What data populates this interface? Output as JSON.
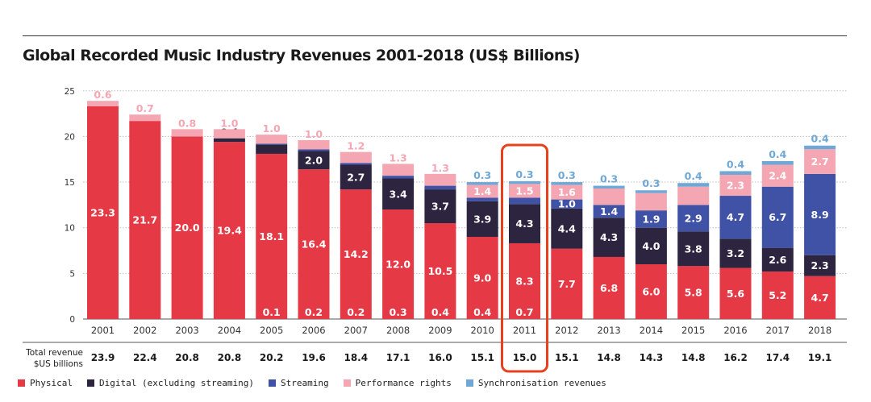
{
  "chart_data": {
    "type": "bar",
    "stacked": true,
    "title": "Global Recorded Music Industry Revenues 2001-2018 (US$ Billions)",
    "categories": [
      "2001",
      "2002",
      "2003",
      "2004",
      "2005",
      "2006",
      "2007",
      "2008",
      "2009",
      "2010",
      "2011",
      "2012",
      "2013",
      "2014",
      "2015",
      "2016",
      "2017",
      "2018"
    ],
    "ylim": [
      0,
      25
    ],
    "yticks": [
      0,
      5,
      10,
      15,
      20,
      25
    ],
    "grid": true,
    "highlighted_category": "2011",
    "series": [
      {
        "name": "Physical",
        "color": "#e63946",
        "label_color": "#ffffff",
        "values": [
          23.3,
          21.7,
          20.0,
          19.4,
          18.1,
          16.4,
          14.2,
          12.0,
          10.5,
          9.0,
          8.3,
          7.7,
          6.8,
          6.0,
          5.8,
          5.6,
          5.2,
          4.7
        ],
        "labels": [
          "23.3",
          "21.7",
          "20.0",
          "19.4",
          "18.1",
          "16.4",
          "14.2",
          "12.0",
          "10.5",
          "9.0",
          "8.3",
          "7.7",
          "6.8",
          "6.0",
          "5.8",
          "5.6",
          "5.2",
          "4.7"
        ]
      },
      {
        "name": "Digital (excluding streaming)",
        "color": "#2d2440",
        "label_color": "#ffffff",
        "values": [
          0,
          0,
          0,
          0.4,
          1.0,
          2.0,
          2.7,
          3.4,
          3.7,
          3.9,
          4.3,
          4.4,
          4.3,
          4.0,
          3.8,
          3.2,
          2.6,
          2.3
        ],
        "labels": [
          "",
          "",
          "",
          "0.4",
          "1.0",
          "2.0",
          "2.7",
          "3.4",
          "3.7",
          "3.9",
          "4.3",
          "4.4",
          "4.3",
          "4.0",
          "3.8",
          "3.2",
          "2.6",
          "2.3"
        ]
      },
      {
        "name": "Streaming",
        "color": "#3f52a5",
        "label_color": "#ffffff",
        "values": [
          0,
          0,
          0,
          0,
          0.1,
          0.2,
          0.2,
          0.3,
          0.4,
          0.4,
          0.7,
          1.0,
          1.4,
          1.9,
          2.9,
          4.7,
          6.7,
          8.9
        ],
        "labels": [
          "",
          "",
          "",
          "",
          "0.1",
          "0.2",
          "0.2",
          "0.3",
          "0.4",
          "0.4",
          "0.7",
          "1.0",
          "1.4",
          "1.9",
          "2.9",
          "4.7",
          "6.7",
          "8.9"
        ]
      },
      {
        "name": "Performance rights",
        "color": "#f4a7b3",
        "label_color": "#f4a7b3",
        "values": [
          0.6,
          0.7,
          0.8,
          1.0,
          1.0,
          1.0,
          1.2,
          1.3,
          1.3,
          1.4,
          1.5,
          1.6,
          1.8,
          1.9,
          2.0,
          2.3,
          2.4,
          2.7
        ],
        "labels": [
          "0.6",
          "0.7",
          "0.8",
          "1.0",
          "1.0",
          "1.0",
          "1.2",
          "1.3",
          "1.3",
          "1.4",
          "1.5",
          "1.6",
          "1.8",
          "1.9",
          "2.0",
          "2.3",
          "2.4",
          "2.7"
        ]
      },
      {
        "name": "Synchronisation revenues",
        "color": "#6fa8d6",
        "label_color": "#6fa8d6",
        "values": [
          0,
          0,
          0,
          0,
          0,
          0,
          0,
          0,
          0,
          0.3,
          0.3,
          0.3,
          0.3,
          0.3,
          0.4,
          0.4,
          0.4,
          0.4
        ],
        "labels": [
          "",
          "",
          "",
          "",
          "",
          "",
          "",
          "",
          "",
          "0.3",
          "0.3",
          "0.3",
          "0.3",
          "0.3",
          "0.4",
          "0.4",
          "0.4",
          "0.4"
        ]
      }
    ],
    "totals_label": [
      "Total revenue",
      "$US billions"
    ],
    "totals": [
      "23.9",
      "22.4",
      "20.8",
      "20.8",
      "20.2",
      "19.6",
      "18.4",
      "17.1",
      "16.0",
      "15.1",
      "15.0",
      "15.1",
      "14.8",
      "14.3",
      "14.8",
      "16.2",
      "17.4",
      "19.1"
    ]
  }
}
